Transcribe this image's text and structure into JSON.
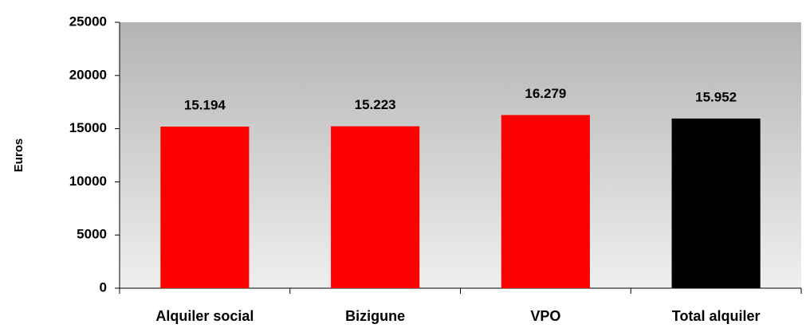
{
  "chart_data": {
    "type": "bar",
    "y_label": "Euros",
    "categories": [
      "Alquiler social",
      "Bizigune",
      "VPO",
      "Total alquiler"
    ],
    "values": [
      15194,
      15223,
      16279,
      15952
    ],
    "value_labels": [
      "15.194",
      "15.223",
      "16.279",
      "15.952"
    ],
    "colors": [
      "#ff0000",
      "#ff0000",
      "#ff0000",
      "#000000"
    ],
    "ylim": [
      0,
      25000
    ],
    "yticks": [
      0,
      5000,
      10000,
      15000,
      20000,
      25000
    ],
    "grid": false
  }
}
